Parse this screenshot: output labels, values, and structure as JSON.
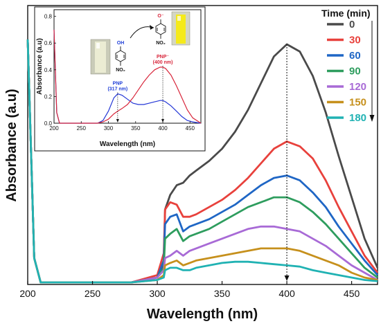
{
  "chart_data": [
    {
      "type": "line",
      "xlabel": "Wavelength (nm)",
      "ylabel": "Absorbance (a.u)",
      "xlim": [
        200,
        470
      ],
      "xticks": [
        200,
        250,
        300,
        350,
        400,
        450
      ],
      "yticks_shown": false,
      "grid": false,
      "legend": {
        "title": "Time (min)",
        "placement": "top-right",
        "arrow": "down"
      },
      "annotations": [
        {
          "type": "dashed-vertical-line",
          "x": 400,
          "arrow": "down"
        }
      ],
      "x": [
        200,
        205,
        210,
        220,
        260,
        280,
        300,
        305,
        306,
        310,
        315,
        320,
        325,
        330,
        340,
        350,
        360,
        370,
        380,
        390,
        400,
        410,
        420,
        430,
        440,
        450,
        460,
        470
      ],
      "series": [
        {
          "name": "0",
          "color": "#4a4a4a",
          "values": [
            1.0,
            0.1,
            0.0,
            0.0,
            0.0,
            0.0,
            0.02,
            0.08,
            0.3,
            0.36,
            0.4,
            0.41,
            0.44,
            0.46,
            0.5,
            0.55,
            0.62,
            0.71,
            0.82,
            0.93,
            0.98,
            0.95,
            0.85,
            0.7,
            0.52,
            0.35,
            0.18,
            0.06
          ]
        },
        {
          "name": "30",
          "color": "#e8413c",
          "values": [
            1.0,
            0.1,
            0.0,
            0.0,
            0.0,
            0.0,
            0.03,
            0.12,
            0.3,
            0.33,
            0.32,
            0.27,
            0.27,
            0.28,
            0.31,
            0.34,
            0.38,
            0.43,
            0.49,
            0.55,
            0.58,
            0.56,
            0.51,
            0.42,
            0.31,
            0.21,
            0.11,
            0.04
          ]
        },
        {
          "name": "60",
          "color": "#1f66c5",
          "values": [
            1.0,
            0.1,
            0.0,
            0.0,
            0.0,
            0.0,
            0.02,
            0.09,
            0.24,
            0.27,
            0.28,
            0.21,
            0.23,
            0.24,
            0.26,
            0.29,
            0.32,
            0.36,
            0.4,
            0.43,
            0.44,
            0.42,
            0.37,
            0.31,
            0.23,
            0.16,
            0.09,
            0.03
          ]
        },
        {
          "name": "90",
          "color": "#2e9d5e",
          "values": [
            1.0,
            0.1,
            0.0,
            0.0,
            0.0,
            0.0,
            0.02,
            0.06,
            0.18,
            0.2,
            0.22,
            0.17,
            0.19,
            0.2,
            0.22,
            0.25,
            0.28,
            0.31,
            0.33,
            0.35,
            0.35,
            0.33,
            0.29,
            0.24,
            0.18,
            0.12,
            0.06,
            0.02
          ]
        },
        {
          "name": "120",
          "color": "#a86ad6",
          "values": [
            1.0,
            0.1,
            0.0,
            0.0,
            0.0,
            0.0,
            0.02,
            0.05,
            0.1,
            0.11,
            0.13,
            0.11,
            0.13,
            0.14,
            0.16,
            0.18,
            0.2,
            0.22,
            0.23,
            0.23,
            0.22,
            0.21,
            0.18,
            0.15,
            0.11,
            0.07,
            0.04,
            0.01
          ]
        },
        {
          "name": "150",
          "color": "#c6901c",
          "values": [
            1.0,
            0.1,
            0.0,
            0.0,
            0.0,
            0.0,
            0.01,
            0.03,
            0.07,
            0.08,
            0.09,
            0.07,
            0.08,
            0.09,
            0.1,
            0.11,
            0.12,
            0.13,
            0.14,
            0.14,
            0.14,
            0.13,
            0.11,
            0.09,
            0.07,
            0.04,
            0.02,
            0.01
          ]
        },
        {
          "name": "180",
          "color": "#20b2b3",
          "values": [
            1.0,
            0.1,
            0.0,
            0.0,
            0.0,
            0.0,
            0.01,
            0.02,
            0.05,
            0.06,
            0.06,
            0.05,
            0.05,
            0.06,
            0.07,
            0.08,
            0.085,
            0.085,
            0.08,
            0.075,
            0.07,
            0.065,
            0.05,
            0.04,
            0.03,
            0.02,
            0.01,
            0.005
          ]
        }
      ]
    },
    {
      "type": "line",
      "xlabel": "Wavelength (nm)",
      "ylabel": "Absorbance (a.u)",
      "xlim": [
        200,
        470
      ],
      "ylim": [
        0,
        0.85
      ],
      "xticks": [
        200,
        250,
        300,
        350,
        400,
        450
      ],
      "yticks": [
        0.0,
        0.2,
        0.4,
        0.6,
        0.8
      ],
      "grid": false,
      "peak_labels": [
        {
          "text": "PNP",
          "sub": "(317 nm)",
          "x": 317,
          "color": "#1f3fd8"
        },
        {
          "text": "PNP⁻",
          "sub": "(400 nm)",
          "x": 400,
          "color": "#d8253a"
        }
      ],
      "structure_labels": {
        "oh": "OH",
        "o_minus": "O⁻",
        "no2": "NO₂"
      },
      "x": [
        200,
        205,
        210,
        220,
        260,
        280,
        290,
        300,
        310,
        317,
        325,
        335,
        345,
        355,
        365,
        375,
        385,
        395,
        400,
        405,
        415,
        425,
        435,
        445,
        455,
        470
      ],
      "series": [
        {
          "color": "#2336d6",
          "values": [
            0.7,
            0.08,
            0.0,
            0.0,
            0.0,
            0.0,
            0.02,
            0.09,
            0.19,
            0.22,
            0.21,
            0.18,
            0.15,
            0.14,
            0.14,
            0.15,
            0.16,
            0.17,
            0.17,
            0.16,
            0.13,
            0.09,
            0.05,
            0.02,
            0.01,
            0.0
          ]
        },
        {
          "color": "#d8253a",
          "values": [
            0.7,
            0.08,
            0.0,
            0.0,
            0.0,
            0.0,
            0.01,
            0.03,
            0.07,
            0.09,
            0.11,
            0.14,
            0.19,
            0.25,
            0.31,
            0.36,
            0.4,
            0.42,
            0.42,
            0.41,
            0.36,
            0.28,
            0.19,
            0.1,
            0.04,
            0.0
          ]
        }
      ]
    }
  ]
}
